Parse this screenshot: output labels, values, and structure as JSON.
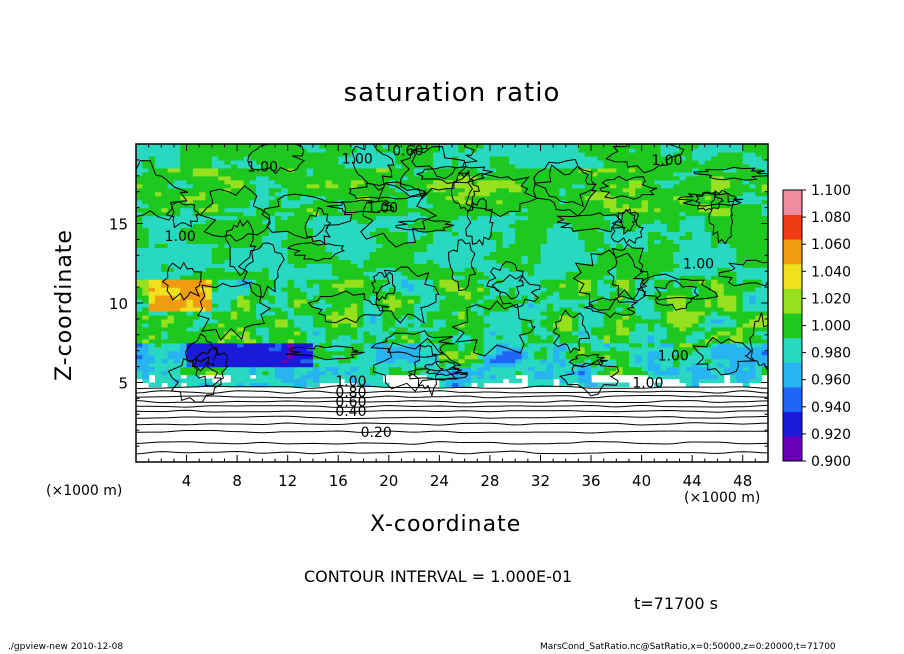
{
  "chart_data": {
    "type": "heatmap",
    "title": "saturation ratio",
    "xlabel": "X-coordinate",
    "ylabel": "Z-coordinate",
    "x_unit_label": "(×1000 m)",
    "xlim": [
      0,
      50
    ],
    "ylim": [
      0,
      20
    ],
    "x_ticks": [
      4,
      8,
      12,
      16,
      20,
      24,
      28,
      32,
      36,
      40,
      44,
      48
    ],
    "x_tick_labels": [
      "4",
      "8",
      "12",
      "16",
      "20",
      "24",
      "28",
      "32",
      "36",
      "40",
      "44",
      "48"
    ],
    "y_ticks": [
      5,
      10,
      15
    ],
    "y_tick_labels": [
      "5",
      "10",
      "15"
    ],
    "colorbar": {
      "levels": [
        0.9,
        0.92,
        0.94,
        0.96,
        0.98,
        1.0,
        1.02,
        1.04,
        1.06,
        1.08,
        1.1
      ],
      "labels": [
        "0.900",
        "0.920",
        "0.940",
        "0.960",
        "0.980",
        "1.000",
        "1.020",
        "1.040",
        "1.060",
        "1.080",
        "1.100"
      ],
      "colors": [
        "#6a00b8",
        "#1a1ad8",
        "#1e64f5",
        "#28b4f0",
        "#28d8c0",
        "#1ec81e",
        "#96e01e",
        "#f0e01e",
        "#f09c10",
        "#f03c14",
        "#f08ca0"
      ]
    },
    "contour_labels": [
      {
        "text": "0.20",
        "x": 19,
        "z": 1.9
      },
      {
        "text": "0.40",
        "x": 17,
        "z": 3.2
      },
      {
        "text": "0.60",
        "x": 17,
        "z": 3.8
      },
      {
        "text": "0.80",
        "x": 17,
        "z": 4.4
      },
      {
        "text": "1.00",
        "x": 17,
        "z": 5.1
      },
      {
        "text": "1.00",
        "x": 10,
        "z": 18.6
      },
      {
        "text": "1.00",
        "x": 19.5,
        "z": 16.0
      },
      {
        "text": "1.00",
        "x": 3.5,
        "z": 14.2
      },
      {
        "text": "1.00",
        "x": 44.5,
        "z": 12.5
      },
      {
        "text": "1.00",
        "x": 42.5,
        "z": 6.7
      },
      {
        "text": "1.00",
        "x": 40.5,
        "z": 5.0
      },
      {
        "text": "1.00",
        "x": 42,
        "z": 19.0
      },
      {
        "text": "1.00",
        "x": 17.5,
        "z": 19.1
      },
      {
        "text": "0.60",
        "x": 21.5,
        "z": 19.6
      }
    ],
    "contour_interval_text": "CONTOUR INTERVAL = 1.000E-01",
    "time_text": "t=71700  s"
  },
  "footer": {
    "left": "./gpview-new  2010-12-08",
    "right": "MarsCond_SatRatio.nc@SatRatio,x=0:50000,z=0:20000,t=71700"
  }
}
